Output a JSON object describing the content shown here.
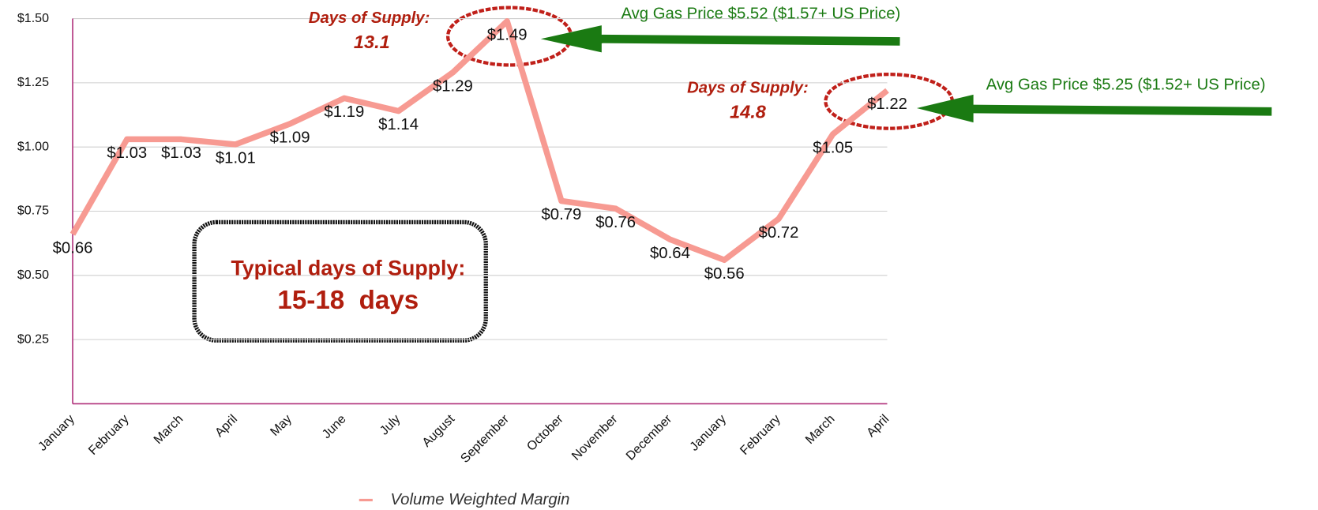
{
  "chart_data": {
    "type": "line",
    "categories": [
      "January",
      "February",
      "March",
      "April",
      "May",
      "June",
      "July",
      "August",
      "September",
      "October",
      "November",
      "December",
      "January",
      "February",
      "March",
      "April"
    ],
    "series": [
      {
        "name": "Volume Weighted Margin",
        "color": "#f79a92",
        "values": [
          0.66,
          1.03,
          1.03,
          1.01,
          1.09,
          1.19,
          1.14,
          1.29,
          1.49,
          0.79,
          0.76,
          0.64,
          0.56,
          0.72,
          1.05,
          1.22
        ],
        "value_labels": [
          "$0.66",
          "$1.03",
          "$1.03",
          "$1.01",
          "$1.09",
          "$1.19",
          "$1.14",
          "$1.29",
          "$1.49",
          "$0.79",
          "$0.76",
          "$0.64",
          "$0.56",
          "$0.72",
          "$1.05",
          "$1.22"
        ]
      }
    ],
    "ylim": [
      0,
      1.5
    ],
    "yticks": [
      {
        "value": 0.25,
        "label": "$0.25"
      },
      {
        "value": 0.5,
        "label": "$0.50"
      },
      {
        "value": 0.75,
        "label": "$0.75"
      },
      {
        "value": 1,
        "label": "$1.00"
      },
      {
        "value": 1.25,
        "label": "$1.25"
      },
      {
        "value": 1.5,
        "label": "$1.50"
      }
    ],
    "grid": true,
    "legend": "bottom",
    "annotations": [
      "Days of Supply:",
      "13.1",
      "Days of Supply:",
      "14.8",
      "Avg Gas Price $5.52 ($1.57+ US Price)",
      "Avg Gas Price $5.25 ($1.52+ US Price)",
      "Typical days of Supply:",
      "15-18  days"
    ]
  }
}
